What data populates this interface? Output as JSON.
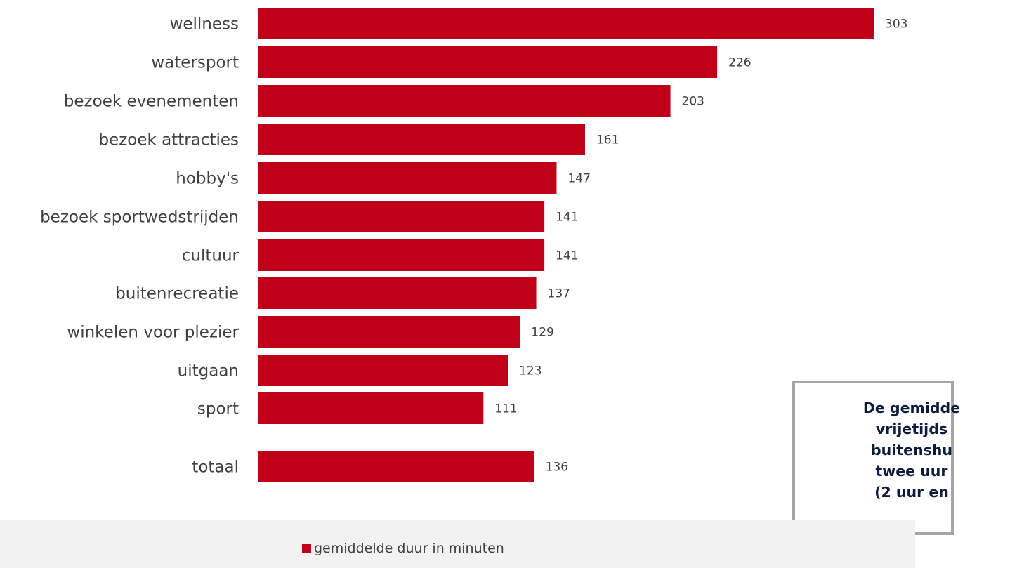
{
  "chart_data": {
    "type": "bar",
    "orientation": "horizontal",
    "categories": [
      "wellness",
      "watersport",
      "bezoek evenementen",
      "bezoek attracties",
      "hobby's",
      "bezoek sportwedstrijden",
      "cultuur",
      "buitenrecreatie",
      "winkelen voor plezier",
      "uitgaan",
      "sport",
      "totaal"
    ],
    "series": [
      {
        "name": "gemiddelde duur in minuten",
        "color": "#c00018",
        "values": [
          303,
          226,
          203,
          161,
          147,
          141,
          141,
          137,
          129,
          123,
          111,
          136
        ]
      }
    ],
    "data_labels": true,
    "grid": false,
    "legend_position": "bottom"
  },
  "callout": {
    "text": "De gemidde\nvrijetijds\nbuitenshu\ntwee uur\n(2 uur en"
  }
}
